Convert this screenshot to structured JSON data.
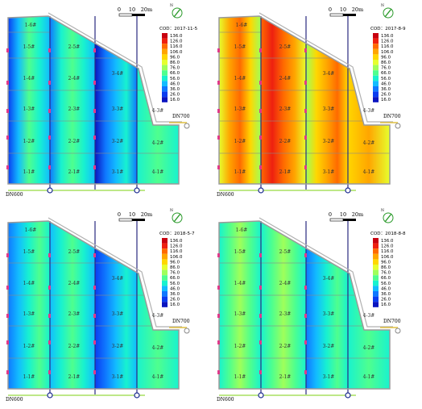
{
  "scale_bar": {
    "ticks": [
      "0",
      "10",
      "20m"
    ]
  },
  "north_arrow_label": "N",
  "legend": {
    "values": [
      "136.0",
      "126.0",
      "116.0",
      "106.0",
      "96.0",
      "86.0",
      "76.0",
      "66.0",
      "56.0",
      "46.0",
      "36.0",
      "26.0",
      "16.0"
    ],
    "colors": [
      "#c8000f",
      "#ee2010",
      "#ff6a00",
      "#ffa500",
      "#ffd700",
      "#e6ff2e",
      "#9fff5a",
      "#4fff8e",
      "#18f2cf",
      "#12bcff",
      "#0f78ff",
      "#0a3cf0",
      "#0a14c0"
    ]
  },
  "pipe_labels": {
    "inlet": "DN700",
    "outlet": "DN600"
  },
  "panels": [
    {
      "title": "COD：2017-11-5",
      "zones": [
        "1-6#",
        "1-5#",
        "2-5#",
        "1-4#",
        "2-4#",
        "3-4#",
        "1-3#",
        "2-3#",
        "3-3#",
        "4-3#",
        "1-2#",
        "2-2#",
        "3-2#",
        "4-2#",
        "1-1#",
        "2-1#",
        "3-1#",
        "4-1#"
      ],
      "stripes": {
        "c1": [
          "#0a3cf0",
          "#12bcff",
          "#4fff8e",
          "#18f2cf",
          "#12bcff"
        ],
        "c2": [
          "#0f78ff",
          "#18f2cf",
          "#4fff8e",
          "#18f2cf",
          "#12bcff"
        ],
        "c3": [
          "#0a14c0",
          "#0f78ff",
          "#12bcff",
          "#18f2cf",
          "#0f78ff"
        ],
        "c4": [
          "#18f2cf",
          "#4fff8e",
          "#18f2cf"
        ]
      }
    },
    {
      "title": "COD：2017-8-9",
      "zones": [
        "1-6#",
        "1-5#",
        "2-5#",
        "1-4#",
        "2-4#",
        "3-4#",
        "1-3#",
        "2-3#",
        "3-3#",
        "4-3#",
        "1-2#",
        "2-2#",
        "3-2#",
        "4-2#",
        "1-1#",
        "2-1#",
        "3-1#",
        "4-1#"
      ],
      "stripes": {
        "c1": [
          "#e6ff2e",
          "#ffa500",
          "#ff6a00",
          "#ffd700",
          "#9fff5a"
        ],
        "c2": [
          "#ff6a00",
          "#ee2010",
          "#ff6a00",
          "#ffa500",
          "#e6ff2e"
        ],
        "c3": [
          "#9fff5a",
          "#ffd700",
          "#ffa500",
          "#ff6a00",
          "#ffd700"
        ],
        "c4": [
          "#ffd700",
          "#ffa500",
          "#e6ff2e"
        ]
      }
    },
    {
      "title": "COD：2018-5-7",
      "zones": [
        "1-6#",
        "1-5#",
        "2-5#",
        "1-4#",
        "2-4#",
        "3-4#",
        "1-3#",
        "2-3#",
        "3-3#",
        "4-3#",
        "1-2#",
        "2-2#",
        "3-2#",
        "4-2#",
        "1-1#",
        "2-1#",
        "3-1#",
        "4-1#"
      ],
      "stripes": {
        "c1": [
          "#0f78ff",
          "#12bcff",
          "#18f2cf",
          "#4fff8e",
          "#18f2cf"
        ],
        "c2": [
          "#12bcff",
          "#18f2cf",
          "#4fff8e",
          "#18f2cf",
          "#12bcff"
        ],
        "c3": [
          "#0a3cf0",
          "#0f78ff",
          "#12bcff",
          "#18f2cf",
          "#12bcff"
        ],
        "c4": [
          "#18f2cf",
          "#4fff8e",
          "#18f2cf"
        ]
      }
    },
    {
      "title": "COD：2018-8-8",
      "zones": [
        "1-6#",
        "1-5#",
        "2-5#",
        "1-4#",
        "2-4#",
        "3-4#",
        "1-3#",
        "2-3#",
        "3-3#",
        "4-3#",
        "1-2#",
        "2-2#",
        "3-2#",
        "4-2#",
        "1-1#",
        "2-1#",
        "3-1#",
        "4-1#"
      ],
      "stripes": {
        "c1": [
          "#18f2cf",
          "#4fff8e",
          "#9fff5a",
          "#4fff8e",
          "#18f2cf"
        ],
        "c2": [
          "#18f2cf",
          "#4fff8e",
          "#9fff5a",
          "#4fff8e",
          "#18f2cf"
        ],
        "c3": [
          "#0f78ff",
          "#12bcff",
          "#18f2cf",
          "#4fff8e",
          "#18f2cf"
        ],
        "c4": [
          "#18f2cf",
          "#4fff8e",
          "#18f2cf"
        ]
      }
    }
  ]
}
